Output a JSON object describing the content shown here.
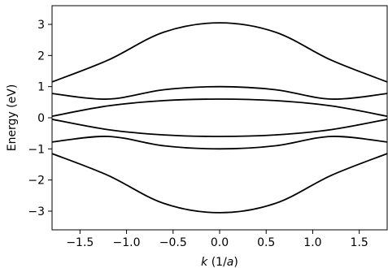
{
  "chart_data": {
    "type": "line",
    "title": "",
    "xlabel": "k (1/a)",
    "xlabel_parts": {
      "var": "k",
      "open": " (1/",
      "unit": "a",
      "close": ")"
    },
    "ylabel": "Energy (eV)",
    "xlim": [
      -1.8,
      1.8
    ],
    "ylim": [
      -3.6,
      3.6
    ],
    "xticks": [
      -1.5,
      -1.0,
      -0.5,
      0.0,
      0.5,
      1.0,
      1.5
    ],
    "xtick_labels": [
      "−1.5",
      "−1.0",
      "−0.5",
      "0.0",
      "0.5",
      "1.0",
      "1.5"
    ],
    "yticks": [
      -3,
      -2,
      -1,
      0,
      1,
      2,
      3
    ],
    "ytick_labels": [
      "−3",
      "−2",
      "−1",
      "0",
      "1",
      "2",
      "3"
    ],
    "grid": false,
    "line_color": "#000000",
    "series": [
      {
        "values": [
          [
            -1.8,
            1.15
          ],
          [
            -1.2,
            1.85
          ],
          [
            -0.6,
            2.75
          ],
          [
            0.0,
            3.05
          ],
          [
            0.6,
            2.75
          ],
          [
            1.2,
            1.85
          ],
          [
            1.8,
            1.15
          ]
        ]
      },
      {
        "values": [
          [
            -1.8,
            0.78
          ],
          [
            -1.2,
            0.6
          ],
          [
            -0.6,
            0.9
          ],
          [
            0.0,
            1.0
          ],
          [
            0.6,
            0.9
          ],
          [
            1.2,
            0.6
          ],
          [
            1.8,
            0.78
          ]
        ]
      },
      {
        "values": [
          [
            -1.8,
            0.05
          ],
          [
            -1.2,
            0.38
          ],
          [
            -0.6,
            0.55
          ],
          [
            0.0,
            0.6
          ],
          [
            0.6,
            0.55
          ],
          [
            1.2,
            0.38
          ],
          [
            1.8,
            0.05
          ]
        ]
      },
      {
        "values": [
          [
            -1.8,
            -0.05
          ],
          [
            -1.2,
            -0.38
          ],
          [
            -0.6,
            -0.55
          ],
          [
            0.0,
            -0.6
          ],
          [
            0.6,
            -0.55
          ],
          [
            1.2,
            -0.38
          ],
          [
            1.8,
            -0.05
          ]
        ]
      },
      {
        "values": [
          [
            -1.8,
            -0.78
          ],
          [
            -1.2,
            -0.6
          ],
          [
            -0.6,
            -0.9
          ],
          [
            0.0,
            -1.0
          ],
          [
            0.6,
            -0.9
          ],
          [
            1.2,
            -0.6
          ],
          [
            1.8,
            -0.78
          ]
        ]
      },
      {
        "values": [
          [
            -1.8,
            -1.15
          ],
          [
            -1.2,
            -1.85
          ],
          [
            -0.6,
            -2.75
          ],
          [
            0.0,
            -3.05
          ],
          [
            0.6,
            -2.75
          ],
          [
            1.2,
            -1.85
          ],
          [
            1.8,
            -1.15
          ]
        ]
      }
    ]
  }
}
